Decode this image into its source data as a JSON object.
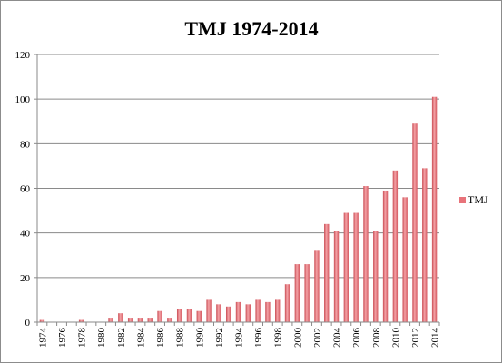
{
  "chart_data": {
    "type": "bar",
    "title": "TMJ 1974-2014",
    "xlabel": "",
    "ylabel": "",
    "ylim": [
      0,
      120
    ],
    "yticks": [
      0,
      20,
      40,
      60,
      80,
      100,
      120
    ],
    "grid": true,
    "legend_position": "right",
    "categories": [
      "1974",
      "1975",
      "1976",
      "1977",
      "1978",
      "1979",
      "1980",
      "1981",
      "1982",
      "1983",
      "1984",
      "1985",
      "1986",
      "1987",
      "1988",
      "1989",
      "1990",
      "1991",
      "1992",
      "1993",
      "1994",
      "1995",
      "1996",
      "1997",
      "1998",
      "1999",
      "2000",
      "2001",
      "2002",
      "2003",
      "2004",
      "2005",
      "2006",
      "2007",
      "2008",
      "2009",
      "2010",
      "2011",
      "2012",
      "2013",
      "2014"
    ],
    "x_tick_labels": [
      "1974",
      "1976",
      "1978",
      "1980",
      "1982",
      "1984",
      "1986",
      "1988",
      "1990",
      "1992",
      "1994",
      "1996",
      "1998",
      "2000",
      "2002",
      "2004",
      "2006",
      "2008",
      "2010",
      "2012",
      "2014"
    ],
    "series": [
      {
        "name": "TMJ",
        "color": "#e8737a",
        "values": [
          1,
          0,
          0,
          0,
          1,
          0,
          0,
          2,
          4,
          2,
          2,
          2,
          5,
          2,
          6,
          6,
          5,
          10,
          8,
          7,
          9,
          8,
          10,
          9,
          10,
          17,
          26,
          26,
          32,
          44,
          41,
          49,
          49,
          61,
          41,
          59,
          68,
          56,
          89,
          69,
          101
        ]
      }
    ]
  }
}
